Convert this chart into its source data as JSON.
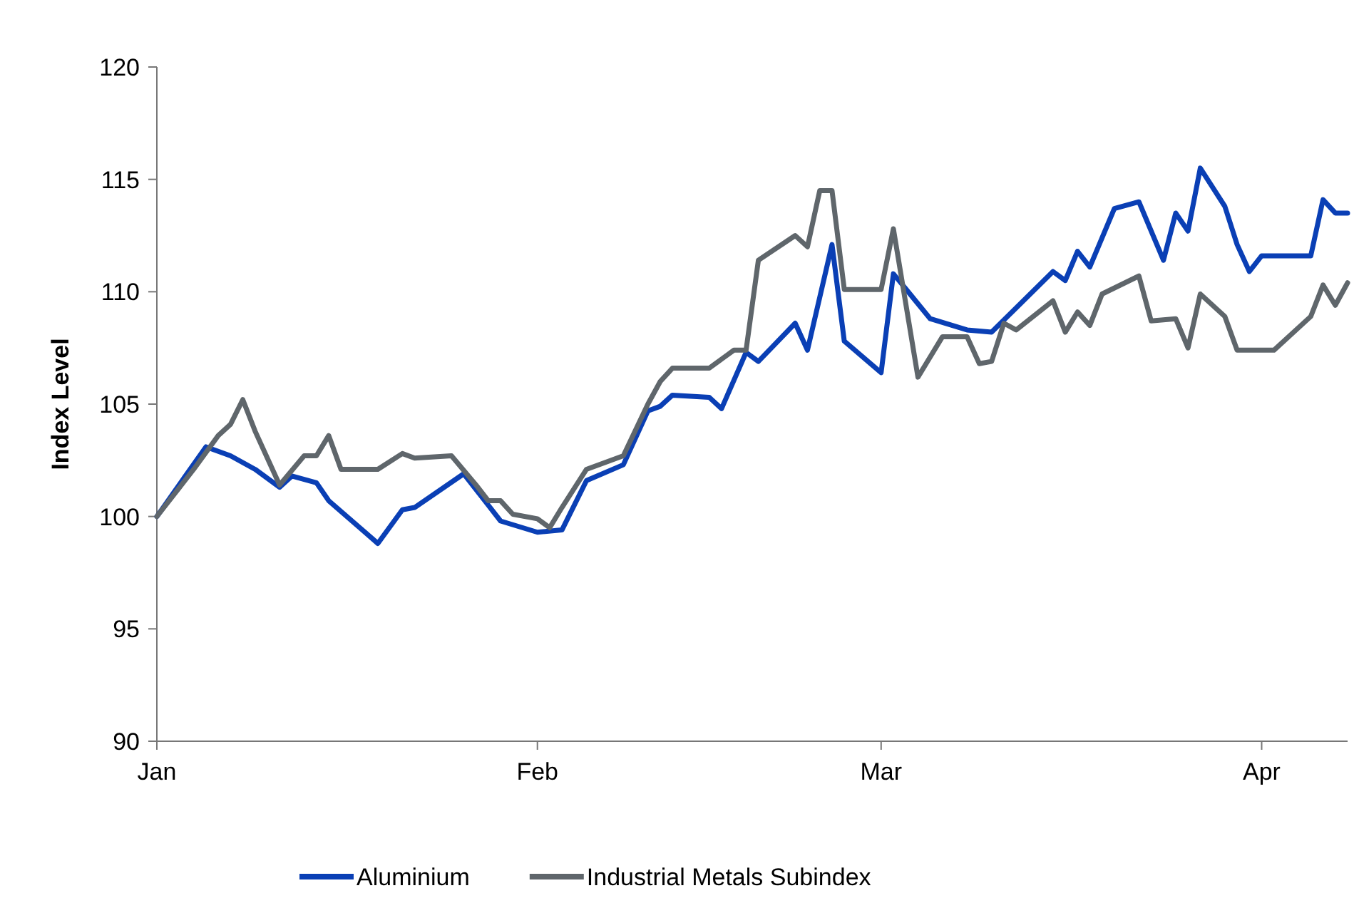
{
  "chart_data": {
    "type": "line",
    "ylabel": "Index Level",
    "xlim": [
      "--01-01",
      "--04-08"
    ],
    "ylim": [
      90,
      120
    ],
    "yticks": [
      90,
      95,
      100,
      105,
      110,
      115,
      120
    ],
    "xticks": [
      {
        "value": "--01-01",
        "label": "Jan"
      },
      {
        "value": "--02-01",
        "label": "Feb"
      },
      {
        "value": "--03-01",
        "label": "Mar"
      },
      {
        "value": "--04-01",
        "label": "Apr"
      }
    ],
    "grid": false,
    "legend": "bottom",
    "marker": "none",
    "line_style": "solid",
    "series": [
      {
        "name": "Aluminium",
        "color": "#0a3fb5",
        "x": [
          "--01-01",
          "--01-05",
          "--01-07",
          "--01-09",
          "--01-11",
          "--01-12",
          "--01-14",
          "--01-15",
          "--01-19",
          "--01-21",
          "--01-22",
          "--01-26",
          "--01-28",
          "--01-29",
          "--02-01",
          "--02-03",
          "--02-05",
          "--02-08",
          "--02-10",
          "--02-11",
          "--02-12",
          "--02-15",
          "--02-16",
          "--02-18",
          "--02-19",
          "--02-22",
          "--02-23",
          "--02-25",
          "--02-26",
          "--03-01",
          "--03-02",
          "--03-05",
          "--03-08",
          "--03-10",
          "--03-15",
          "--03-16",
          "--03-17",
          "--03-18",
          "--03-20",
          "--03-22",
          "--03-24",
          "--03-25",
          "--03-26",
          "--03-27",
          "--03-29",
          "--03-30",
          "--03-31",
          "--04-01",
          "--04-05",
          "--04-06",
          "--04-07",
          "--04-08"
        ],
        "values": [
          100.0,
          103.1,
          102.7,
          102.1,
          101.3,
          101.8,
          101.5,
          100.7,
          98.8,
          100.3,
          100.4,
          101.9,
          100.5,
          99.8,
          99.3,
          99.4,
          101.6,
          102.3,
          104.7,
          104.9,
          105.4,
          105.3,
          104.8,
          107.3,
          106.9,
          108.6,
          107.4,
          112.1,
          107.8,
          106.4,
          110.8,
          108.8,
          108.3,
          108.2,
          110.9,
          110.5,
          111.8,
          111.1,
          113.7,
          114.0,
          111.4,
          113.5,
          112.7,
          115.5,
          113.8,
          112.1,
          110.9,
          111.6,
          111.6,
          114.1,
          113.5,
          113.5
        ]
      },
      {
        "name": "Industrial Metals Subindex",
        "color": "#5f666b",
        "x": [
          "--01-01",
          "--01-04",
          "--01-06",
          "--01-07",
          "--01-08",
          "--01-09",
          "--01-11",
          "--01-13",
          "--01-14",
          "--01-15",
          "--01-16",
          "--01-19",
          "--01-21",
          "--01-22",
          "--01-25",
          "--01-27",
          "--01-28",
          "--01-29",
          "--01-30",
          "--02-01",
          "--02-02",
          "--02-03",
          "--02-05",
          "--02-08",
          "--02-10",
          "--02-11",
          "--02-12",
          "--02-15",
          "--02-17",
          "--02-18",
          "--02-19",
          "--02-22",
          "--02-23",
          "--02-24",
          "--02-25",
          "--02-26",
          "--03-01",
          "--03-02",
          "--03-04",
          "--03-06",
          "--03-08",
          "--03-09",
          "--03-10",
          "--03-11",
          "--03-12",
          "--03-15",
          "--03-16",
          "--03-17",
          "--03-18",
          "--03-19",
          "--03-22",
          "--03-23",
          "--03-25",
          "--03-26",
          "--03-27",
          "--03-29",
          "--03-30",
          "--04-02",
          "--04-05",
          "--04-06",
          "--04-07",
          "--04-08"
        ],
        "values": [
          100.0,
          102.1,
          103.6,
          104.1,
          105.2,
          103.8,
          101.4,
          102.7,
          102.7,
          103.6,
          102.1,
          102.1,
          102.8,
          102.6,
          102.7,
          101.4,
          100.7,
          100.7,
          100.1,
          99.9,
          99.5,
          100.4,
          102.1,
          102.7,
          105.0,
          106.0,
          106.6,
          106.6,
          107.4,
          107.4,
          111.4,
          112.5,
          112.0,
          114.5,
          114.5,
          110.1,
          110.1,
          112.8,
          106.2,
          108.0,
          108.0,
          106.8,
          106.9,
          108.6,
          108.3,
          109.6,
          108.2,
          109.1,
          108.5,
          109.9,
          110.7,
          108.7,
          108.8,
          107.5,
          109.9,
          108.9,
          107.4,
          107.4,
          108.9,
          110.3,
          109.4,
          110.4
        ]
      }
    ]
  }
}
